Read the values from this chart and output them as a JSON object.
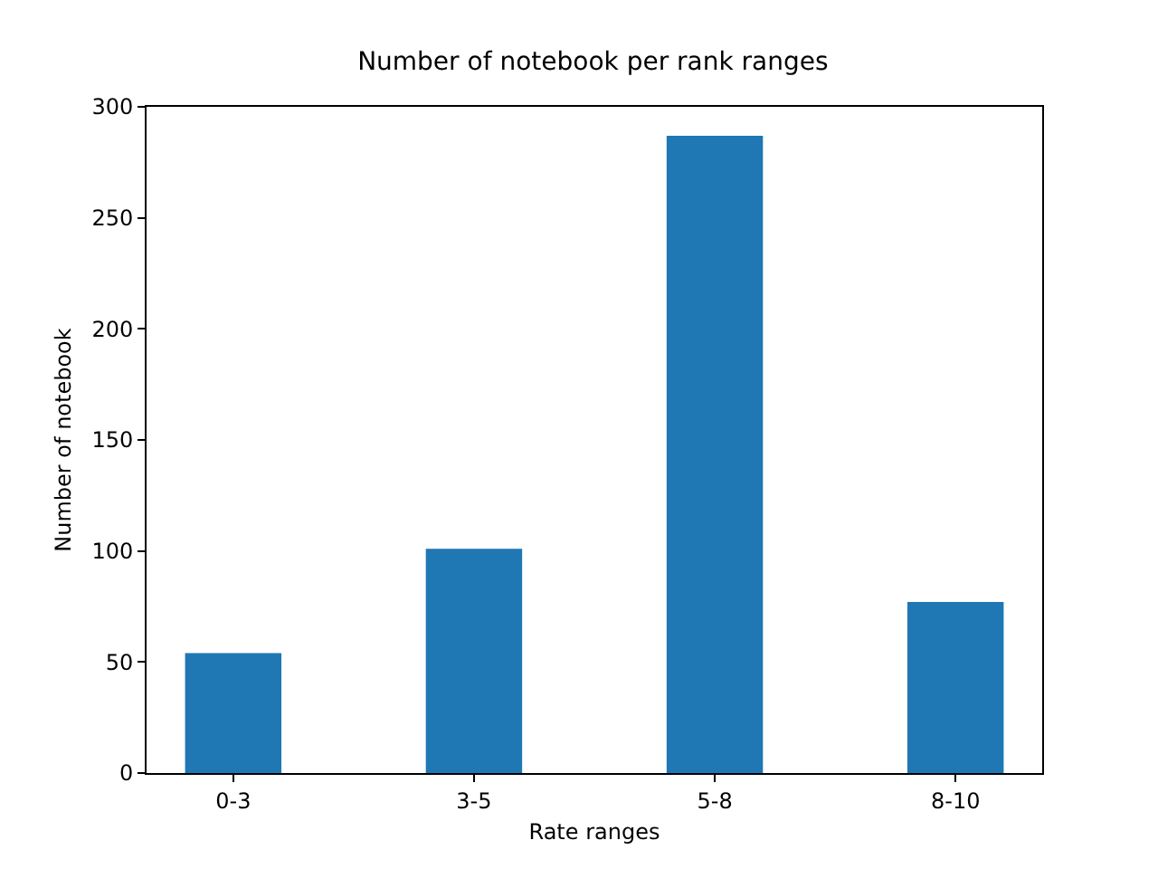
{
  "chart_data": {
    "type": "bar",
    "title": "Number of notebook per rank ranges",
    "xlabel": "Rate ranges",
    "ylabel": "Number of notebook",
    "categories": [
      "0-3",
      "3-5",
      "5-8",
      "8-10"
    ],
    "values": [
      54,
      101,
      287,
      77
    ],
    "color": "#1f77b4",
    "ylim": [
      0,
      300
    ],
    "yticks": [
      0,
      50,
      100,
      150,
      200,
      250,
      300
    ],
    "grid": false
  }
}
